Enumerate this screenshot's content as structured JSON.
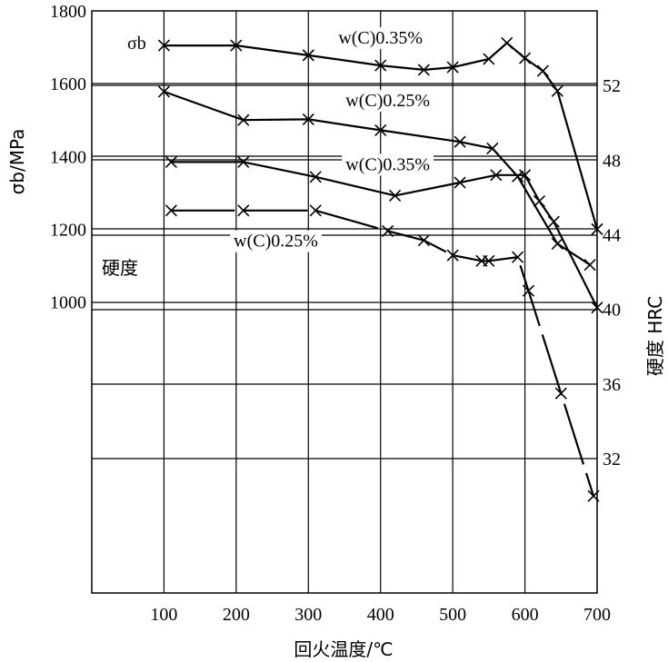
{
  "chart_data": {
    "type": "line",
    "xlabel": "回火温度/℃",
    "ylabel_left": "σb/MPa",
    "ylabel_right": "硬度 HRC",
    "x_ticks": [
      "100",
      "200",
      "300",
      "400",
      "500",
      "600",
      "700"
    ],
    "y_left_ticks": [
      "1000",
      "1200",
      "1400",
      "1600",
      "1800"
    ],
    "y_right_ticks": [
      "32",
      "36",
      "40",
      "44",
      "48",
      "52"
    ],
    "xlim": [
      0,
      700
    ],
    "y_left_lim": [
      200,
      1800
    ],
    "y_right_lim": [
      24.8,
      56
    ],
    "grid": true,
    "group_labels": {
      "strength": "σb",
      "hardness": "硬度"
    },
    "series": [
      {
        "name": "w(C)0.35%",
        "group": "strength",
        "axis": "left",
        "dashed": false,
        "label_position": [
          400,
          1728
        ],
        "points": [
          [
            100,
            1705
          ],
          [
            200,
            1705
          ],
          [
            300,
            1678
          ],
          [
            400,
            1650
          ],
          [
            460,
            1638
          ],
          [
            500,
            1645
          ],
          [
            550,
            1668
          ],
          [
            575,
            1712
          ],
          [
            600,
            1670
          ],
          [
            625,
            1635
          ],
          [
            645,
            1580
          ],
          [
            700,
            1200
          ]
        ]
      },
      {
        "name": "w(C)0.25%",
        "group": "strength",
        "axis": "left",
        "dashed": false,
        "label_position": [
          410,
          1555
        ],
        "points": [
          [
            100,
            1578
          ],
          [
            210,
            1500
          ],
          [
            300,
            1502
          ],
          [
            400,
            1472
          ],
          [
            510,
            1440
          ],
          [
            555,
            1422
          ],
          [
            590,
            1345
          ],
          [
            645,
            1160
          ],
          [
            690,
            1102
          ]
        ]
      },
      {
        "name": "w(C)0.35%",
        "group": "hardness",
        "axis": "right",
        "dashed": false,
        "label_position": [
          410,
          47.8
        ],
        "points": [
          [
            110,
            47.9
          ],
          [
            210,
            47.9
          ],
          [
            310,
            47.1
          ],
          [
            420,
            46.1
          ],
          [
            510,
            46.8
          ],
          [
            560,
            47.2
          ],
          [
            600,
            47.2
          ],
          [
            620,
            45.8
          ],
          [
            640,
            44.7
          ],
          [
            700,
            40.1
          ]
        ]
      },
      {
        "name": "w(C)0.25%",
        "group": "hardness",
        "axis": "right",
        "dashed": true,
        "label_position": [
          255,
          43.7
        ],
        "points": [
          [
            110,
            45.3
          ],
          [
            210,
            45.3
          ],
          [
            310,
            45.3
          ],
          [
            410,
            44.2
          ],
          [
            460,
            43.7
          ],
          [
            500,
            42.9
          ],
          [
            540,
            42.6
          ],
          [
            550,
            42.6
          ],
          [
            590,
            42.8
          ],
          [
            605,
            41.0
          ],
          [
            650,
            35.5
          ],
          [
            695,
            30.0
          ]
        ]
      }
    ]
  }
}
